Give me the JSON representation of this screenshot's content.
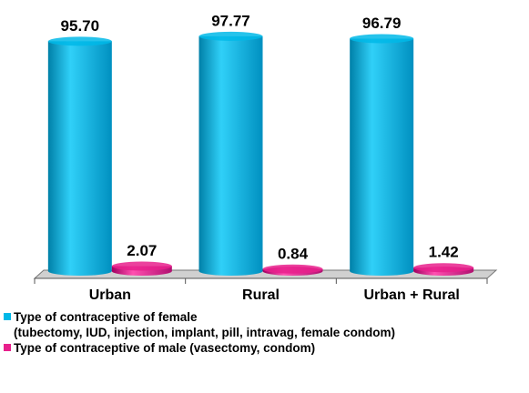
{
  "chart_data": {
    "type": "bar",
    "categories": [
      "Urban",
      "Rural",
      "Urban + Rural"
    ],
    "series": [
      {
        "name": "Type of contraceptive of female\n(tubectomy, IUD, injection, implant, pill, intravag, female condom)",
        "color": "#00b8e8",
        "values": [
          95.7,
          97.77,
          96.79
        ],
        "value_labels": [
          "95.70",
          "97.77",
          "96.79"
        ]
      },
      {
        "name": "Type of contraceptive of male (vasectomy, condom)",
        "color": "#e8208c",
        "values": [
          2.07,
          0.84,
          1.42
        ],
        "value_labels": [
          "2.07",
          "0.84",
          "1.42"
        ]
      }
    ],
    "ylim": [
      0,
      100
    ],
    "legend": "bottom"
  }
}
